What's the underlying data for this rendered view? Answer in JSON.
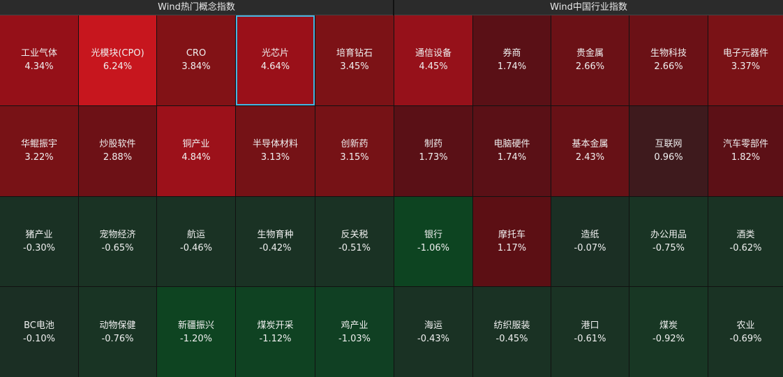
{
  "left_panel": {
    "title": "Wind热门概念指数",
    "tiles": [
      {
        "name": "工业气体",
        "change": "4.34%",
        "color": "#951018"
      },
      {
        "name": "光模块(CPO)",
        "change": "6.24%",
        "color": "#c7161e"
      },
      {
        "name": "CRO",
        "change": "3.84%",
        "color": "#821216"
      },
      {
        "name": "光芯片",
        "change": "4.64%",
        "color": "#9a1019",
        "selected": true
      },
      {
        "name": "培育钻石",
        "change": "3.45%",
        "color": "#7c1216"
      },
      {
        "name": "华鲲振宇",
        "change": "3.22%",
        "color": "#781216"
      },
      {
        "name": "炒股软件",
        "change": "2.88%",
        "color": "#6d1116"
      },
      {
        "name": "铜产业",
        "change": "4.84%",
        "color": "#9c111a"
      },
      {
        "name": "半导体材料",
        "change": "3.13%",
        "color": "#751216"
      },
      {
        "name": "创新药",
        "change": "3.15%",
        "color": "#761216"
      },
      {
        "name": "猪产业",
        "change": "-0.30%",
        "color": "#1a3124"
      },
      {
        "name": "宠物经济",
        "change": "-0.65%",
        "color": "#1a3324"
      },
      {
        "name": "航运",
        "change": "-0.46%",
        "color": "#1a3224"
      },
      {
        "name": "生物育种",
        "change": "-0.42%",
        "color": "#1a3224"
      },
      {
        "name": "反关税",
        "change": "-0.51%",
        "color": "#1a3224"
      },
      {
        "name": "BC电池",
        "change": "-0.10%",
        "color": "#1b2f24"
      },
      {
        "name": "动物保健",
        "change": "-0.76%",
        "color": "#193424"
      },
      {
        "name": "新疆振兴",
        "change": "-1.20%",
        "color": "#0e4421"
      },
      {
        "name": "煤炭开采",
        "change": "-1.12%",
        "color": "#0f4222"
      },
      {
        "name": "鸡产业",
        "change": "-1.03%",
        "color": "#104023"
      }
    ]
  },
  "right_panel": {
    "title": "Wind中国行业指数",
    "tiles": [
      {
        "name": "通信设备",
        "change": "4.45%",
        "color": "#96111a"
      },
      {
        "name": "券商",
        "change": "1.74%",
        "color": "#5a1016"
      },
      {
        "name": "贵金属",
        "change": "2.66%",
        "color": "#6b1116"
      },
      {
        "name": "生物科技",
        "change": "2.66%",
        "color": "#6b1116"
      },
      {
        "name": "电子元器件",
        "change": "3.37%",
        "color": "#7a1216"
      },
      {
        "name": "制药",
        "change": "1.73%",
        "color": "#5a1016"
      },
      {
        "name": "电脑硬件",
        "change": "1.74%",
        "color": "#5a1016"
      },
      {
        "name": "基本金属",
        "change": "2.43%",
        "color": "#671116"
      },
      {
        "name": "互联网",
        "change": "0.96%",
        "color": "#3e1a1d"
      },
      {
        "name": "汽车零部件",
        "change": "1.82%",
        "color": "#5c1016"
      },
      {
        "name": "银行",
        "change": "-1.06%",
        "color": "#0d4421"
      },
      {
        "name": "摩托车",
        "change": "1.17%",
        "color": "#5c0f14"
      },
      {
        "name": "造纸",
        "change": "-0.07%",
        "color": "#1b2f24"
      },
      {
        "name": "办公用品",
        "change": "-0.75%",
        "color": "#193424"
      },
      {
        "name": "酒类",
        "change": "-0.62%",
        "color": "#1a3324"
      },
      {
        "name": "海运",
        "change": "-0.43%",
        "color": "#1a3224"
      },
      {
        "name": "纺织服装",
        "change": "-0.45%",
        "color": "#1a3224"
      },
      {
        "name": "港口",
        "change": "-0.61%",
        "color": "#1a3324"
      },
      {
        "name": "煤炭",
        "change": "-0.92%",
        "color": "#183724"
      },
      {
        "name": "农业",
        "change": "-0.69%",
        "color": "#1a3324"
      }
    ]
  }
}
